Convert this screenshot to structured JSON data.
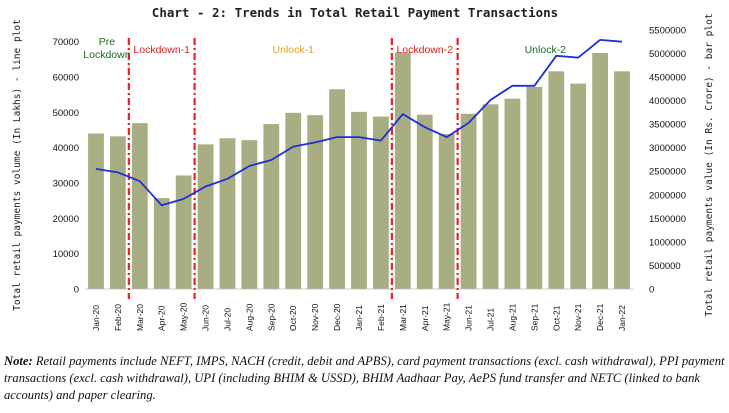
{
  "chart_data": {
    "type": "bar+line",
    "title": "Chart - 2: Trends in Total Retail Payment Transactions",
    "y_left_label": "Total retail payments volume (In Lakhs) - line plot",
    "y_right_label": "Total retail payments value (In Rs. Crore) - bar plot",
    "y_left_ticks": [
      "0",
      "10000",
      "20000",
      "30000",
      "40000",
      "50000",
      "60000",
      "70000"
    ],
    "y_right_ticks": [
      "0",
      "500000",
      "1000000",
      "1500000",
      "2000000",
      "2500000",
      "3000000",
      "3500000",
      "4000000",
      "4500000",
      "5000000",
      "5500000"
    ],
    "y_left_lim": [
      0,
      75000
    ],
    "y_right_lim": [
      0,
      5625000
    ],
    "categories": [
      "Jan-20",
      "Feb-20",
      "Mar-20",
      "Apr-20",
      "May-20",
      "Jun-20",
      "Jul-20",
      "Aug-20",
      "Sep-20",
      "Oct-20",
      "Nov-20",
      "Dec-20",
      "Jan-21",
      "Feb-21",
      "Mar-21",
      "Apr-21",
      "May-21",
      "Jun-21",
      "Jul-21",
      "Aug-21",
      "Sep-21",
      "Oct-21",
      "Nov-21",
      "Dec-21",
      "Jan-22"
    ],
    "bar_series": {
      "axis": "right",
      "color": "#a8ad82",
      "values": [
        3300000,
        3240000,
        3520000,
        1930000,
        2410000,
        3070000,
        3200000,
        3160000,
        3500000,
        3740000,
        3690000,
        4240000,
        3760000,
        3660000,
        5020000,
        3700000,
        3290000,
        3720000,
        3920000,
        4040000,
        4290000,
        4620000,
        4360000,
        5010000,
        4620000
      ]
    },
    "line_series": {
      "axis": "left",
      "color": "#1f2fd8",
      "values": [
        34000,
        33000,
        30500,
        23700,
        25500,
        29000,
        31200,
        34800,
        36500,
        40300,
        41500,
        43000,
        43000,
        42000,
        49500,
        45800,
        43000,
        47000,
        53500,
        57500,
        57500,
        66000,
        65500,
        70500,
        70000
      ]
    },
    "phase_lines": [
      "Mar-20",
      "Jun-20",
      "Mar-21",
      "Jun-21"
    ],
    "phase_labels": [
      {
        "text": "Pre",
        "text2": "Lockdown",
        "color": "#1a6e1a"
      },
      {
        "text": "Lockdown-1",
        "color": "#e02020"
      },
      {
        "text": "Unlock-1",
        "color": "#e0a020"
      },
      {
        "text": "Lockdown-2",
        "color": "#e02020"
      },
      {
        "text": "Unlock-2",
        "color": "#1a6e1a"
      }
    ]
  },
  "note": {
    "label": "Note:",
    "text": "Retail payments include NEFT, IMPS, NACH (credit, debit and APBS), card payment transactions (excl. cash withdrawal), PPI payment transactions (excl. cash withdrawal), UPI (including BHIM & USSD), BHIM Aadhaar Pay, AePS fund transfer and NETC (linked to bank accounts) and paper clearing."
  }
}
